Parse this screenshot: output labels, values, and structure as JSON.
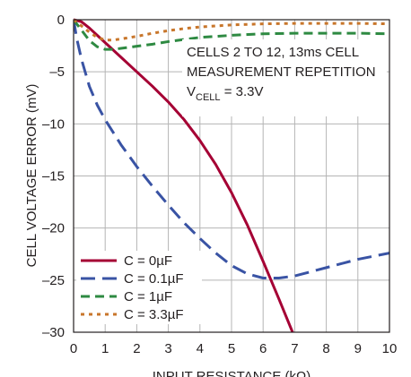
{
  "chart_data": {
    "type": "line",
    "title": "",
    "xlabel": "INPUT RESISTANCE (kΩ)",
    "ylabel": "CELL VOLTAGE ERROR (mV)",
    "xlim": [
      0,
      10
    ],
    "ylim": [
      -30,
      0
    ],
    "xticks": [
      0,
      1,
      2,
      3,
      4,
      5,
      6,
      7,
      8,
      9,
      10
    ],
    "yticks": [
      0,
      -5,
      -10,
      -15,
      -20,
      -25,
      -30
    ],
    "xtick_labels": [
      "0",
      "1",
      "2",
      "3",
      "4",
      "5",
      "6",
      "7",
      "8",
      "9",
      "10"
    ],
    "ytick_labels": [
      "0",
      "–5",
      "–10",
      "–15",
      "–20",
      "–25",
      "–30"
    ],
    "grid": true,
    "annotation": {
      "line1": "CELLS 2 TO 12, 13ms CELL",
      "line2": "MEASUREMENT REPETITION",
      "line3_main": "V",
      "line3_sub": "CELL",
      "line3_rest": " = 3.3V"
    },
    "legend_position": "bottom-left",
    "series": [
      {
        "name": "C = 0µF",
        "color": "#a50034",
        "dash": "solid",
        "x": [
          0,
          0.25,
          0.5,
          1,
          1.5,
          2,
          2.5,
          3,
          3.5,
          4,
          4.5,
          5,
          5.5,
          6,
          6.5,
          7
        ],
        "y": [
          0,
          -0.2,
          -0.8,
          -2.2,
          -3.6,
          -5.0,
          -6.4,
          -7.9,
          -9.6,
          -11.6,
          -13.9,
          -16.6,
          -19.7,
          -23.2,
          -26.8,
          -30.5
        ]
      },
      {
        "name": "C = 0.1µF",
        "color": "#3953a4",
        "dash": "long",
        "x": [
          0,
          0.1,
          0.25,
          0.5,
          0.75,
          1,
          1.5,
          2,
          2.5,
          3,
          3.5,
          4,
          4.5,
          5,
          5.5,
          6,
          6.5,
          7,
          7.5,
          8,
          8.5,
          9,
          9.5,
          10
        ],
        "y": [
          0,
          -1.8,
          -3.8,
          -6.4,
          -8.2,
          -9.6,
          -12.0,
          -14.1,
          -16.0,
          -17.8,
          -19.5,
          -21.0,
          -22.4,
          -23.6,
          -24.4,
          -24.8,
          -24.8,
          -24.6,
          -24.2,
          -23.8,
          -23.4,
          -23.0,
          -22.7,
          -22.4
        ]
      },
      {
        "name": "C = 1µF",
        "color": "#2e8a42",
        "dash": "medium",
        "x": [
          0,
          0.25,
          0.5,
          0.75,
          1,
          1.25,
          1.5,
          2,
          2.5,
          3,
          3.5,
          4,
          5,
          6,
          7,
          8,
          9,
          10
        ],
        "y": [
          0,
          -1.0,
          -2.0,
          -2.6,
          -2.85,
          -2.85,
          -2.75,
          -2.55,
          -2.35,
          -2.1,
          -1.9,
          -1.7,
          -1.5,
          -1.35,
          -1.3,
          -1.3,
          -1.3,
          -1.35
        ]
      },
      {
        "name": "C = 3.3µF",
        "color": "#c8762b",
        "dash": "dotted",
        "x": [
          0,
          0.25,
          0.5,
          0.75,
          1,
          1.25,
          1.5,
          2,
          2.5,
          3,
          3.5,
          4,
          5,
          6,
          7,
          8,
          9,
          10
        ],
        "y": [
          0,
          -0.6,
          -1.2,
          -1.7,
          -1.95,
          -1.95,
          -1.85,
          -1.6,
          -1.3,
          -1.05,
          -0.85,
          -0.7,
          -0.5,
          -0.4,
          -0.35,
          -0.35,
          -0.35,
          -0.4
        ]
      }
    ]
  }
}
